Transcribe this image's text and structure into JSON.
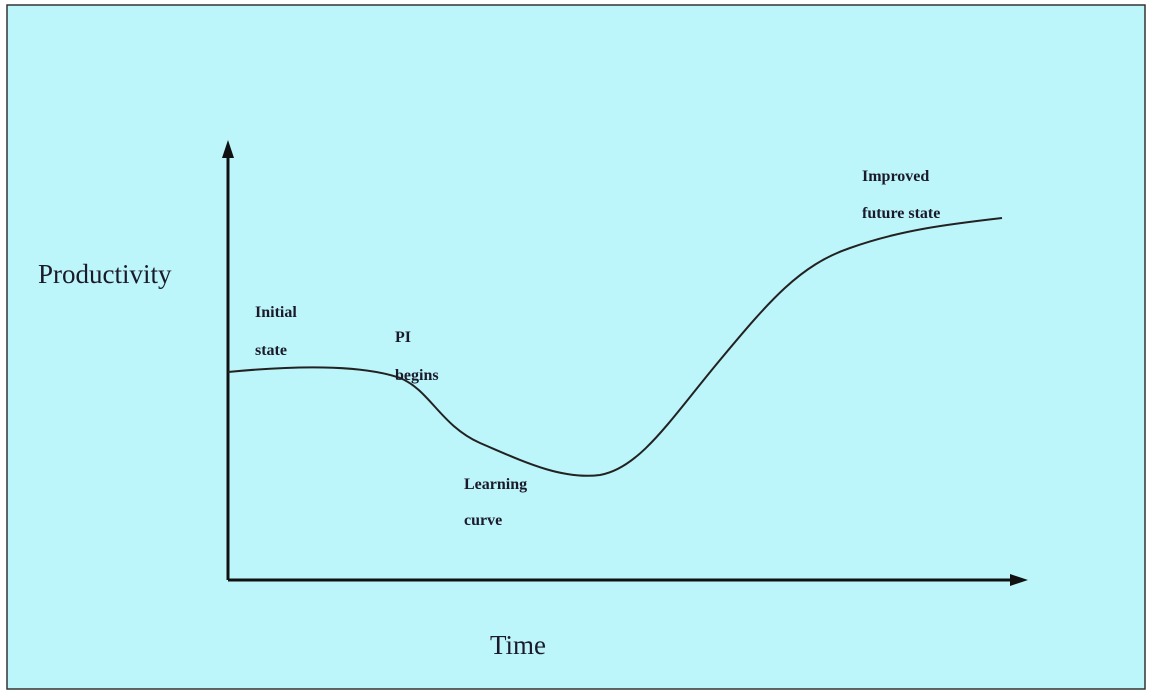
{
  "axes": {
    "y_label": "Productivity",
    "x_label": "Time"
  },
  "annotations": [
    {
      "lines": [
        "Initial",
        "state"
      ]
    },
    {
      "lines": [
        "PI",
        "begins"
      ]
    },
    {
      "lines": [
        "Learning",
        "curve"
      ]
    },
    {
      "lines": [
        "Improved",
        "future state"
      ]
    }
  ]
}
